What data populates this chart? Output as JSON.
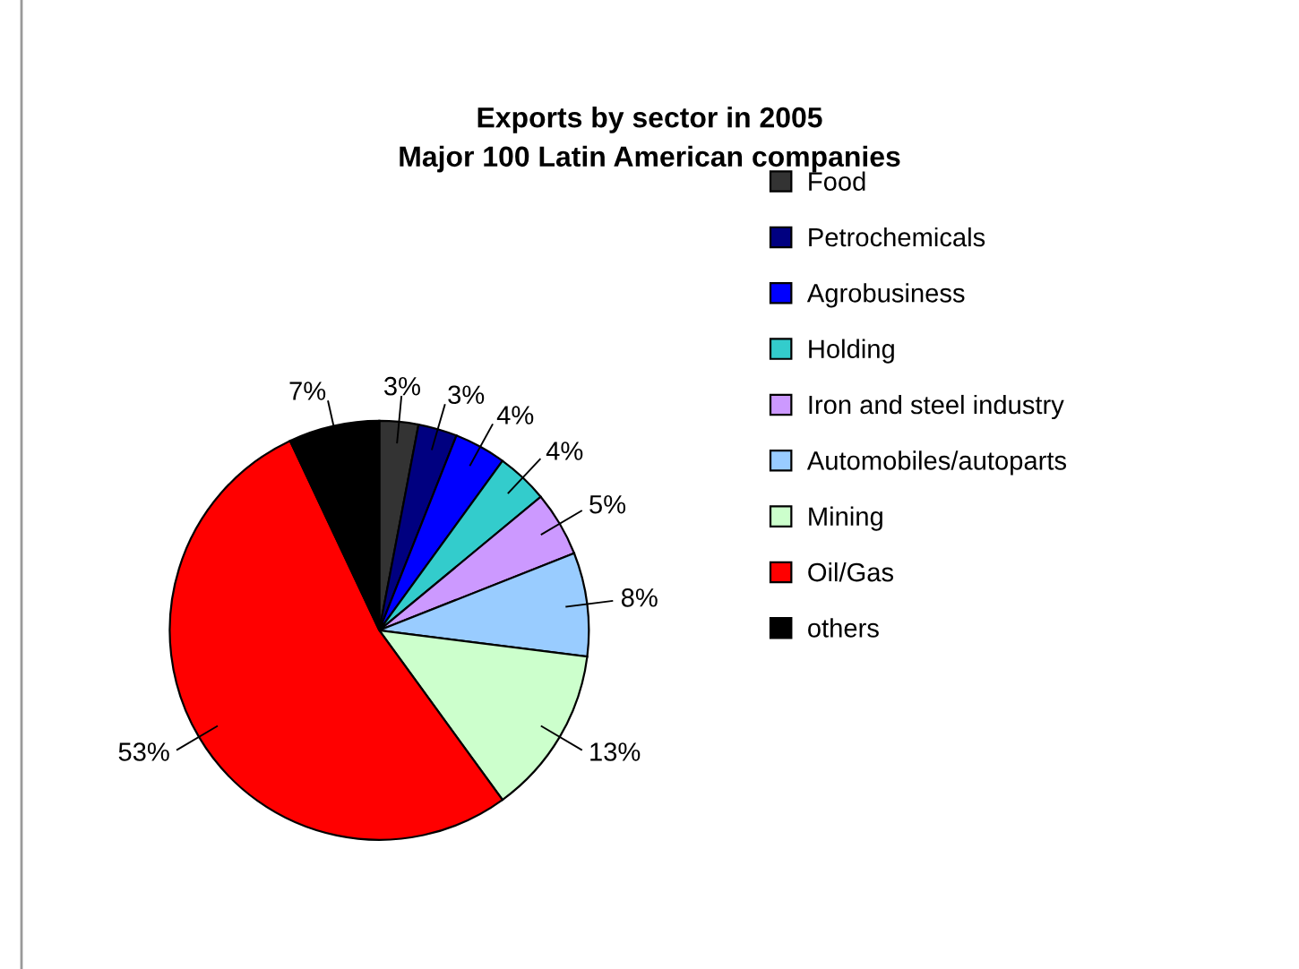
{
  "chart_data": {
    "type": "pie",
    "title": "Exports by sector in 2005\nMajor 100 Latin American companies",
    "categories": [
      "Food",
      "Petrochemicals",
      "Agrobusiness",
      "Holding",
      "Iron and steel industry",
      "Automobiles/autoparts",
      "Mining",
      "Oil/Gas",
      "others"
    ],
    "values": [
      3,
      3,
      4,
      4,
      5,
      8,
      13,
      53,
      7
    ],
    "colors": [
      "#333333",
      "#000080",
      "#0000ff",
      "#33cccc",
      "#cc99ff",
      "#99ccff",
      "#ccffcc",
      "#ff0000",
      "#000000"
    ],
    "value_labels": [
      "3%",
      "3%",
      "4%",
      "4%",
      "5%",
      "8%",
      "13%",
      "53%",
      "7%"
    ],
    "legend": "right"
  }
}
